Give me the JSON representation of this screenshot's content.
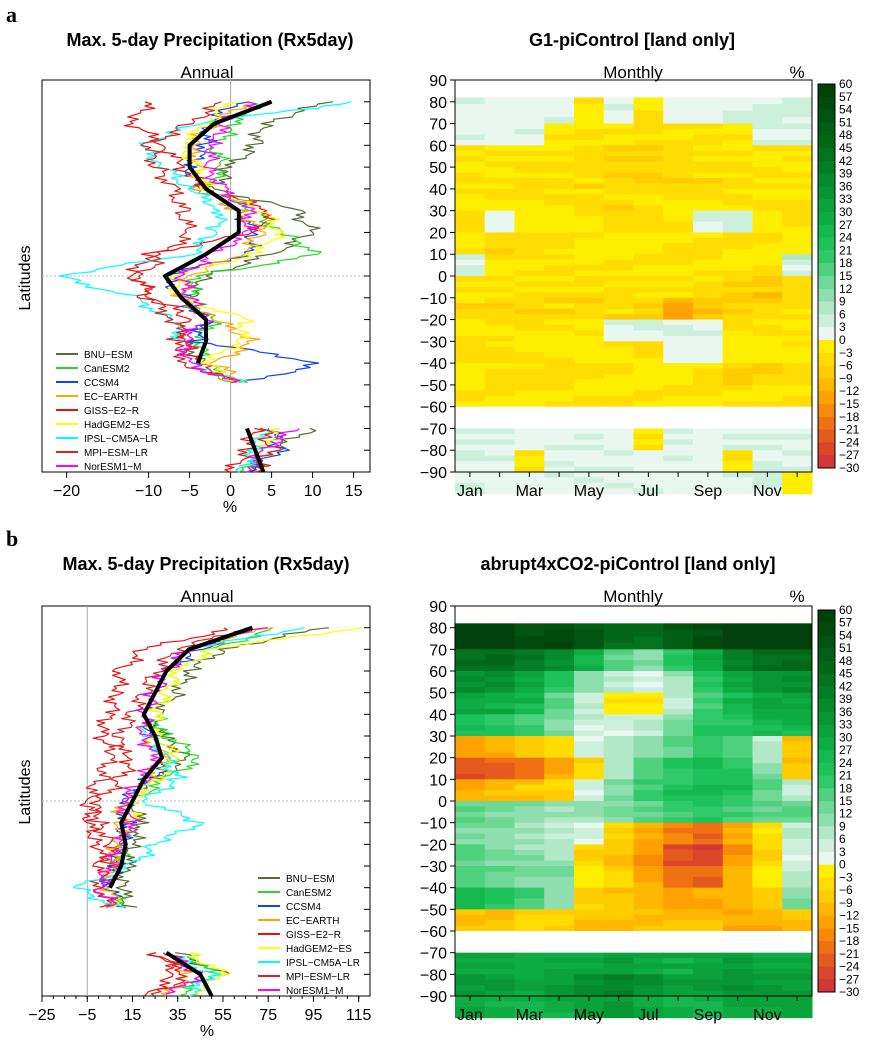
{
  "panels": [
    {
      "letter": "a",
      "left_title": "Max. 5-day Precipitation (Rx5day)",
      "right_title": "G1-piControl  [land only]",
      "left_subtitle": "Annual",
      "right_subtitle": "Monthly",
      "pct_label": "%",
      "xlabel": "%"
    },
    {
      "letter": "b",
      "left_title": "Max. 5-day Precipitation (Rx5day)",
      "right_title": "abrupt4xCO2-piControl  [land only]",
      "left_subtitle": "Annual",
      "right_subtitle": "Monthly",
      "pct_label": "%",
      "xlabel": "%"
    }
  ],
  "ylabel": "Latitudes",
  "colors": {
    "BNU-ESM": "#556b2f",
    "CanESM2": "#22dd22",
    "CCSM4": "#1144ee",
    "EC-EARTH": "#ffa500",
    "GISS-E2-R": "#ee1111",
    "HadGEM2-ES": "#ffff00",
    "IPSL-CM5A-LR": "#00ffff",
    "MPI-ESM-LR": "#dd2222",
    "NorESM1-M": "#ff00ff",
    "ensemble_mean": "#000000"
  },
  "chart_data": [
    {
      "type": "line",
      "panel": "a",
      "title": "Max. 5-day Precipitation (Rx5day)",
      "subtitle": "Annual",
      "xlabel": "%",
      "ylabel": "Latitudes",
      "xlim": [
        -23,
        17
      ],
      "ylim": [
        -90,
        90
      ],
      "xticks": [
        "-20",
        "-10",
        "-5",
        "0",
        "5",
        "10",
        "15"
      ],
      "legend": [
        "BNU-ESM",
        "CanESM2",
        "CCSM4",
        "EC-EARTH",
        "GISS-E2-R",
        "HadGEM2-ES",
        "IPSL-CM5A-LR",
        "MPI-ESM-LR",
        "NorESM1-M"
      ],
      "legend_position": "bottom-left",
      "reference_lines": {
        "x": 0,
        "y": 0
      },
      "latitudes": [
        80,
        70,
        60,
        50,
        40,
        30,
        20,
        10,
        0,
        -10,
        -20,
        -30,
        -40,
        -50,
        -70,
        -80,
        -90
      ],
      "series": [
        {
          "name": "BNU-ESM",
          "values": [
            12,
            4,
            3,
            0,
            -2,
            8,
            10,
            5,
            -3,
            -5,
            -3,
            -6,
            -3,
            1,
            10,
            5,
            2
          ]
        },
        {
          "name": "CanESM2",
          "values": [
            3,
            1,
            -2,
            -1,
            -3,
            3,
            6,
            11,
            -4,
            -5,
            -2,
            -4,
            -3,
            0,
            6,
            4,
            1
          ]
        },
        {
          "name": "CCSM4",
          "values": [
            1,
            -3,
            -3,
            -5,
            -4,
            1,
            3,
            2,
            -8,
            -6,
            -3,
            -4,
            11,
            1,
            5,
            6,
            2
          ]
        },
        {
          "name": "EC-EARTH",
          "values": [
            2,
            -2,
            -5,
            -4,
            -4,
            1,
            4,
            1,
            -5,
            -6,
            -2,
            3,
            -2,
            2,
            4,
            3,
            1
          ]
        },
        {
          "name": "GISS-E2-R",
          "values": [
            -10,
            -12,
            -8,
            -6,
            -3,
            5,
            3,
            -10,
            -12,
            -9,
            -5,
            -7,
            -4,
            1,
            3,
            2,
            0
          ]
        },
        {
          "name": "HadGEM2-ES",
          "values": [
            0,
            -3,
            -6,
            -4,
            -3,
            4,
            6,
            3,
            -7,
            -6,
            2,
            1,
            -3,
            1,
            6,
            4,
            2
          ]
        },
        {
          "name": "IPSL-CM5A-LR",
          "values": [
            15,
            -4,
            -11,
            -8,
            -5,
            -1,
            -2,
            -5,
            -21,
            -12,
            -7,
            -6,
            -5,
            2,
            4,
            3,
            1
          ]
        },
        {
          "name": "MPI-ESM-LR",
          "values": [
            -1,
            -5,
            -10,
            -9,
            -7,
            -6,
            -5,
            -8,
            -11,
            -10,
            -7,
            -5,
            -6,
            2,
            4,
            5,
            3
          ]
        },
        {
          "name": "NorESM1-M",
          "values": [
            3,
            -1,
            -2,
            -3,
            -1,
            2,
            2,
            -2,
            -6,
            -5,
            -3,
            -6,
            -5,
            1,
            8,
            4,
            2
          ]
        },
        {
          "name": "ensemble_mean",
          "values": [
            5,
            -2,
            -5,
            -5,
            -3,
            1,
            1,
            -3,
            -8,
            -6,
            -3,
            -3,
            -4,
            1,
            2,
            3,
            4
          ]
        }
      ]
    },
    {
      "type": "heatmap",
      "panel": "a",
      "title": "G1-piControl  [land only]",
      "subtitle": "Monthly",
      "units": "%",
      "x": [
        "Jan",
        "Feb",
        "Mar",
        "Apr",
        "May",
        "Jun",
        "Jul",
        "Aug",
        "Sep",
        "Oct",
        "Nov",
        "Dec"
      ],
      "xticks": [
        "Jan",
        "Mar",
        "May",
        "Jul",
        "Sep",
        "Nov"
      ],
      "ylim": [
        -90,
        90
      ],
      "yticks": [
        90,
        80,
        70,
        60,
        50,
        40,
        30,
        20,
        10,
        0,
        -10,
        -20,
        -30,
        -40,
        -50,
        -60,
        -70,
        -80,
        -90
      ],
      "colorbar_ticks": [
        60,
        57,
        54,
        51,
        48,
        45,
        42,
        39,
        36,
        33,
        30,
        27,
        24,
        21,
        18,
        15,
        12,
        9,
        6,
        3,
        0,
        -3,
        -6,
        -9,
        -12,
        -15,
        -18,
        -21,
        -24,
        -27,
        -30
      ],
      "lat_bands": [
        80,
        70,
        60,
        50,
        40,
        30,
        20,
        10,
        0,
        -10,
        -20,
        -30,
        -40,
        -50,
        -60,
        -70,
        -80,
        -90
      ],
      "z": [
        [
          2,
          2,
          1,
          1,
          -3,
          1,
          -3,
          1,
          1,
          2,
          3,
          2
        ],
        [
          2,
          1,
          1,
          -3,
          -3,
          -4,
          -4,
          -3,
          -3,
          -3,
          1,
          2
        ],
        [
          -4,
          -4,
          -4,
          -4,
          -5,
          -6,
          -6,
          -5,
          -4,
          -4,
          -3,
          -3
        ],
        [
          -3,
          -3,
          -4,
          -4,
          -5,
          -6,
          -7,
          -6,
          -5,
          -4,
          -4,
          -3
        ],
        [
          -3,
          -3,
          -3,
          -4,
          -4,
          -5,
          -5,
          -4,
          -4,
          -3,
          -3,
          -3
        ],
        [
          -3,
          1,
          -4,
          -3,
          -3,
          -4,
          -3,
          -3,
          1,
          1,
          -3,
          -3
        ],
        [
          -4,
          -5,
          -4,
          -3,
          -3,
          -3,
          -3,
          -3,
          -3,
          -3,
          -3,
          -3
        ],
        [
          4,
          -3,
          -3,
          -4,
          -3,
          -3,
          -4,
          -3,
          -3,
          -3,
          -3,
          4
        ],
        [
          -4,
          -4,
          -4,
          -4,
          -4,
          -4,
          -4,
          -4,
          -5,
          -6,
          -8,
          -5
        ],
        [
          -5,
          -6,
          -6,
          -5,
          -5,
          -5,
          -7,
          -14,
          -9,
          -6,
          -5,
          -4
        ],
        [
          -3,
          -4,
          -4,
          -3,
          -2,
          1,
          2,
          2,
          2,
          -3,
          -3,
          -3
        ],
        [
          -3,
          -3,
          -3,
          -4,
          -3,
          -3,
          -3,
          1,
          1,
          -3,
          -3,
          -3
        ],
        [
          -4,
          -5,
          -4,
          -4,
          -3,
          -4,
          -4,
          -4,
          -4,
          -5,
          -5,
          -5
        ],
        [
          -3,
          -3,
          -3,
          -3,
          -3,
          -3,
          -3,
          -3,
          -3,
          -3,
          -3,
          -3
        ],
        [
          0,
          0,
          0,
          0,
          0,
          0,
          0,
          0,
          0,
          0,
          0,
          0
        ],
        [
          2,
          1,
          1,
          1,
          2,
          1,
          -3,
          1,
          1,
          2,
          1,
          2
        ],
        [
          2,
          1,
          -3,
          2,
          1,
          2,
          1,
          1,
          1,
          -3,
          2,
          1
        ],
        [
          2,
          2,
          1,
          1,
          1,
          1,
          1,
          1,
          1,
          1,
          2,
          -3
        ]
      ]
    },
    {
      "type": "line",
      "panel": "b",
      "title": "Max. 5-day Precipitation (Rx5day)",
      "subtitle": "Annual",
      "xlabel": "%",
      "ylabel": "Latitudes",
      "xlim": [
        -25,
        120
      ],
      "ylim": [
        -90,
        90
      ],
      "xticks": [
        "-25",
        "-5",
        "15",
        "35",
        "55",
        "75",
        "95",
        "115"
      ],
      "legend": [
        "BNU-ESM",
        "CanESM2",
        "CCSM4",
        "EC-EARTH",
        "GISS-E2-R",
        "HadGEM2-ES",
        "IPSL-CM5A-LR",
        "MPI-ESM-LR",
        "NorESM1-M"
      ],
      "legend_position": "bottom-right",
      "reference_lines": {
        "x": -5,
        "y": 0
      },
      "latitudes": [
        80,
        70,
        60,
        50,
        40,
        30,
        20,
        10,
        0,
        -10,
        -20,
        -30,
        -40,
        -50,
        -70,
        -80,
        -90
      ],
      "series": [
        {
          "name": "BNU-ESM",
          "values": [
            100,
            55,
            40,
            35,
            25,
            28,
            40,
            25,
            15,
            18,
            15,
            12,
            10,
            14,
            35,
            55,
            40
          ]
        },
        {
          "name": "CanESM2",
          "values": [
            80,
            50,
            35,
            30,
            25,
            30,
            45,
            30,
            15,
            15,
            12,
            8,
            5,
            12,
            40,
            50,
            35
          ]
        },
        {
          "name": "CCSM4",
          "values": [
            70,
            45,
            30,
            25,
            20,
            25,
            35,
            22,
            12,
            12,
            10,
            8,
            4,
            10,
            30,
            45,
            30
          ]
        },
        {
          "name": "EC-EARTH",
          "values": [
            75,
            40,
            30,
            25,
            20,
            20,
            30,
            20,
            10,
            10,
            8,
            6,
            5,
            8,
            30,
            40,
            30
          ]
        },
        {
          "name": "GISS-E2-R",
          "values": [
            60,
            20,
            10,
            8,
            5,
            0,
            15,
            10,
            0,
            -5,
            0,
            2,
            0,
            5,
            25,
            35,
            20
          ]
        },
        {
          "name": "HadGEM2-ES",
          "values": [
            115,
            50,
            35,
            30,
            25,
            25,
            35,
            25,
            15,
            15,
            10,
            5,
            0,
            10,
            40,
            55,
            40
          ]
        },
        {
          "name": "IPSL-CM5A-LR",
          "values": [
            90,
            40,
            30,
            25,
            20,
            22,
            30,
            35,
            20,
            45,
            25,
            15,
            -10,
            10,
            30,
            50,
            40
          ]
        },
        {
          "name": "MPI-ESM-LR",
          "values": [
            65,
            35,
            25,
            20,
            15,
            10,
            5,
            0,
            -5,
            0,
            5,
            5,
            0,
            8,
            25,
            40,
            25
          ]
        },
        {
          "name": "NorESM1-M",
          "values": [
            70,
            40,
            30,
            25,
            20,
            20,
            25,
            20,
            10,
            15,
            10,
            5,
            0,
            8,
            30,
            45,
            30
          ]
        },
        {
          "name": "ensemble_mean",
          "values": [
            68,
            40,
            30,
            25,
            20,
            25,
            28,
            20,
            15,
            10,
            12,
            10,
            5,
            9,
            30,
            45,
            50
          ]
        }
      ]
    },
    {
      "type": "heatmap",
      "panel": "b",
      "title": "abrupt4xCO2-piControl  [land only]",
      "subtitle": "Monthly",
      "units": "%",
      "x": [
        "Jan",
        "Feb",
        "Mar",
        "Apr",
        "May",
        "Jun",
        "Jul",
        "Aug",
        "Sep",
        "Oct",
        "Nov",
        "Dec"
      ],
      "xticks": [
        "Jan",
        "Mar",
        "May",
        "Jul",
        "Sep",
        "Nov"
      ],
      "ylim": [
        -90,
        90
      ],
      "yticks": [
        90,
        80,
        70,
        60,
        50,
        40,
        30,
        20,
        10,
        0,
        -10,
        -20,
        -30,
        -40,
        -50,
        -60,
        -70,
        -80,
        -90
      ],
      "colorbar_ticks": [
        60,
        57,
        54,
        51,
        48,
        45,
        42,
        39,
        36,
        33,
        30,
        27,
        24,
        21,
        18,
        15,
        12,
        9,
        6,
        3,
        0,
        -3,
        -6,
        -9,
        -12,
        -15,
        -18,
        -21,
        -24,
        -27,
        -30
      ],
      "lat_bands": [
        80,
        70,
        60,
        50,
        40,
        30,
        20,
        10,
        0,
        -10,
        -20,
        -30,
        -40,
        -50,
        -60,
        -70,
        -80,
        -90
      ],
      "z": [
        [
          60,
          60,
          55,
          55,
          50,
          45,
          45,
          50,
          55,
          60,
          60,
          60
        ],
        [
          45,
          45,
          40,
          35,
          25,
          15,
          12,
          20,
          30,
          40,
          45,
          45
        ],
        [
          35,
          35,
          30,
          22,
          10,
          5,
          3,
          8,
          20,
          30,
          35,
          35
        ],
        [
          30,
          28,
          25,
          15,
          6,
          -3,
          -3,
          5,
          18,
          25,
          30,
          30
        ],
        [
          22,
          20,
          18,
          12,
          4,
          3,
          6,
          12,
          20,
          22,
          25,
          25
        ],
        [
          -12,
          -12,
          -10,
          -6,
          3,
          8,
          12,
          15,
          18,
          15,
          5,
          -8
        ],
        [
          -24,
          -22,
          -18,
          -12,
          -6,
          6,
          15,
          20,
          25,
          22,
          10,
          -10
        ],
        [
          -12,
          -10,
          -8,
          -6,
          3,
          10,
          18,
          22,
          25,
          22,
          15,
          6
        ],
        [
          15,
          12,
          10,
          8,
          10,
          12,
          15,
          18,
          20,
          18,
          15,
          15
        ],
        [
          12,
          10,
          8,
          6,
          3,
          -6,
          -12,
          -18,
          -21,
          -12,
          -3,
          6
        ],
        [
          15,
          12,
          10,
          8,
          -6,
          -9,
          -15,
          -24,
          -27,
          -15,
          -6,
          3
        ],
        [
          18,
          15,
          12,
          10,
          -3,
          -6,
          -12,
          -18,
          -21,
          -12,
          -3,
          6
        ],
        [
          22,
          20,
          18,
          12,
          -6,
          -9,
          -12,
          -15,
          -12,
          -9,
          -6,
          12
        ],
        [
          -9,
          -9,
          -6,
          -6,
          -9,
          -9,
          -9,
          -9,
          -9,
          -12,
          -12,
          -9
        ],
        [
          0,
          0,
          0,
          0,
          0,
          0,
          0,
          0,
          0,
          0,
          0,
          0
        ],
        [
          30,
          30,
          28,
          30,
          30,
          32,
          30,
          28,
          30,
          32,
          30,
          30
        ],
        [
          33,
          33,
          30,
          33,
          35,
          38,
          35,
          32,
          33,
          35,
          33,
          33
        ],
        [
          30,
          28,
          27,
          28,
          30,
          32,
          30,
          28,
          27,
          30,
          28,
          30
        ]
      ]
    }
  ]
}
